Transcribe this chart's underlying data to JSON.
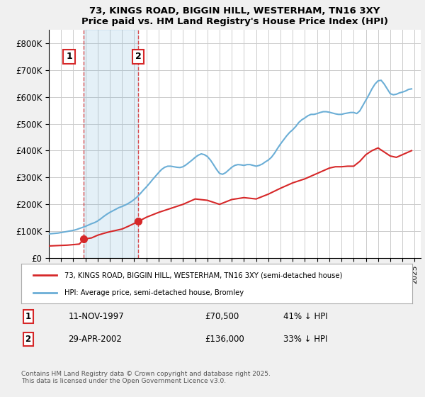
{
  "title": "73, KINGS ROAD, BIGGIN HILL, WESTERHAM, TN16 3XY",
  "subtitle": "Price paid vs. HM Land Registry's House Price Index (HPI)",
  "ylabel": "",
  "ylim": [
    0,
    850000
  ],
  "yticks": [
    0,
    100000,
    200000,
    300000,
    400000,
    500000,
    600000,
    700000,
    800000
  ],
  "ytick_labels": [
    "£0",
    "£100K",
    "£200K",
    "£300K",
    "£400K",
    "£500K",
    "£600K",
    "£700K",
    "£800K"
  ],
  "hpi_color": "#6baed6",
  "price_color": "#d62728",
  "marker_color_1": "#d62728",
  "marker_color_2": "#d62728",
  "sale1_date": 1997.86,
  "sale1_price": 70500,
  "sale1_label": "1",
  "sale2_date": 2002.33,
  "sale2_price": 136000,
  "sale2_label": "2",
  "legend_entry1": "73, KINGS ROAD, BIGGIN HILL, WESTERHAM, TN16 3XY (semi-detached house)",
  "legend_entry2": "HPI: Average price, semi-detached house, Bromley",
  "table_row1": [
    "1",
    "11-NOV-1997",
    "£70,500",
    "41% ↓ HPI"
  ],
  "table_row2": [
    "2",
    "29-APR-2002",
    "£136,000",
    "33% ↓ HPI"
  ],
  "footnote": "Contains HM Land Registry data © Crown copyright and database right 2025.\nThis data is licensed under the Open Government Licence v3.0.",
  "background_color": "#f0f0f0",
  "plot_bg_color": "#ffffff",
  "grid_color": "#cccccc",
  "vline1_color": "#d62728",
  "vline2_color": "#d62728",
  "hpi_data": {
    "years": [
      1995.0,
      1995.25,
      1995.5,
      1995.75,
      1996.0,
      1996.25,
      1996.5,
      1996.75,
      1997.0,
      1997.25,
      1997.5,
      1997.75,
      1998.0,
      1998.25,
      1998.5,
      1998.75,
      1999.0,
      1999.25,
      1999.5,
      1999.75,
      2000.0,
      2000.25,
      2000.5,
      2000.75,
      2001.0,
      2001.25,
      2001.5,
      2001.75,
      2002.0,
      2002.25,
      2002.5,
      2002.75,
      2003.0,
      2003.25,
      2003.5,
      2003.75,
      2004.0,
      2004.25,
      2004.5,
      2004.75,
      2005.0,
      2005.25,
      2005.5,
      2005.75,
      2006.0,
      2006.25,
      2006.5,
      2006.75,
      2007.0,
      2007.25,
      2007.5,
      2007.75,
      2008.0,
      2008.25,
      2008.5,
      2008.75,
      2009.0,
      2009.25,
      2009.5,
      2009.75,
      2010.0,
      2010.25,
      2010.5,
      2010.75,
      2011.0,
      2011.25,
      2011.5,
      2011.75,
      2012.0,
      2012.25,
      2012.5,
      2012.75,
      2013.0,
      2013.25,
      2013.5,
      2013.75,
      2014.0,
      2014.25,
      2014.5,
      2014.75,
      2015.0,
      2015.25,
      2015.5,
      2015.75,
      2016.0,
      2016.25,
      2016.5,
      2016.75,
      2017.0,
      2017.25,
      2017.5,
      2017.75,
      2018.0,
      2018.25,
      2018.5,
      2018.75,
      2019.0,
      2019.25,
      2019.5,
      2019.75,
      2020.0,
      2020.25,
      2020.5,
      2020.75,
      2021.0,
      2021.25,
      2021.5,
      2021.75,
      2022.0,
      2022.25,
      2022.5,
      2022.75,
      2023.0,
      2023.25,
      2023.5,
      2023.75,
      2024.0,
      2024.25,
      2024.5,
      2024.75
    ],
    "values": [
      90000,
      91000,
      92000,
      93000,
      95000,
      97000,
      99000,
      101000,
      103000,
      106000,
      110000,
      114000,
      118000,
      123000,
      128000,
      132000,
      138000,
      146000,
      155000,
      163000,
      170000,
      176000,
      182000,
      188000,
      192000,
      197000,
      203000,
      210000,
      218000,
      228000,
      240000,
      253000,
      265000,
      278000,
      292000,
      305000,
      318000,
      330000,
      338000,
      342000,
      342000,
      340000,
      338000,
      337000,
      340000,
      347000,
      356000,
      365000,
      375000,
      383000,
      388000,
      385000,
      378000,
      365000,
      348000,
      330000,
      315000,
      312000,
      318000,
      328000,
      338000,
      345000,
      348000,
      347000,
      345000,
      348000,
      348000,
      345000,
      342000,
      345000,
      350000,
      358000,
      365000,
      375000,
      390000,
      408000,
      425000,
      440000,
      455000,
      468000,
      478000,
      490000,
      505000,
      515000,
      522000,
      530000,
      535000,
      535000,
      538000,
      542000,
      545000,
      545000,
      543000,
      540000,
      537000,
      535000,
      535000,
      538000,
      540000,
      542000,
      542000,
      538000,
      548000,
      568000,
      588000,
      608000,
      630000,
      648000,
      660000,
      662000,
      648000,
      630000,
      612000,
      608000,
      610000,
      615000,
      618000,
      622000,
      628000,
      630000
    ]
  },
  "price_data": {
    "years": [
      1995.0,
      1995.5,
      1996.0,
      1996.5,
      1997.0,
      1997.5,
      1997.86,
      1998.5,
      1999.0,
      1999.5,
      2000.0,
      2000.5,
      2001.0,
      2001.5,
      2002.33,
      2003.0,
      2004.0,
      2005.0,
      2006.0,
      2007.0,
      2008.0,
      2009.0,
      2010.0,
      2011.0,
      2012.0,
      2013.0,
      2014.0,
      2015.0,
      2016.0,
      2017.0,
      2017.5,
      2018.0,
      2018.5,
      2019.0,
      2019.5,
      2020.0,
      2020.5,
      2021.0,
      2021.5,
      2022.0,
      2022.5,
      2023.0,
      2023.5,
      2024.0,
      2024.5,
      2024.75
    ],
    "values": [
      45000,
      46000,
      47000,
      48000,
      50000,
      52000,
      70500,
      75000,
      85000,
      92000,
      98000,
      103000,
      108000,
      118000,
      136000,
      152000,
      170000,
      185000,
      200000,
      220000,
      215000,
      200000,
      218000,
      225000,
      220000,
      238000,
      260000,
      280000,
      295000,
      315000,
      325000,
      335000,
      340000,
      340000,
      342000,
      342000,
      360000,
      385000,
      400000,
      410000,
      395000,
      380000,
      375000,
      385000,
      395000,
      400000
    ]
  }
}
